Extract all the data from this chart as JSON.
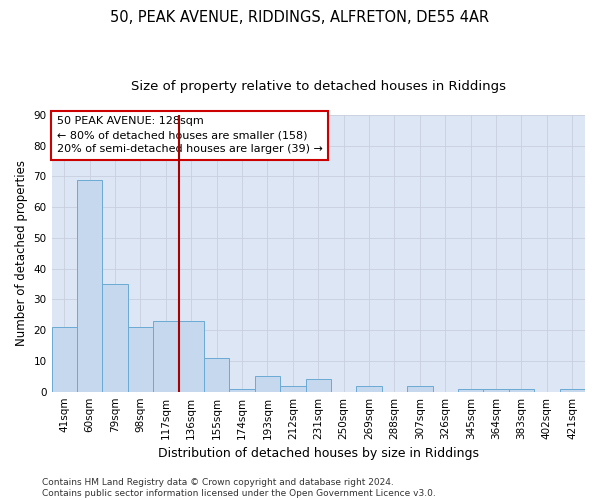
{
  "title1": "50, PEAK AVENUE, RIDDINGS, ALFRETON, DE55 4AR",
  "title2": "Size of property relative to detached houses in Riddings",
  "xlabel": "Distribution of detached houses by size in Riddings",
  "ylabel": "Number of detached properties",
  "categories": [
    "41sqm",
    "60sqm",
    "79sqm",
    "98sqm",
    "117sqm",
    "136sqm",
    "155sqm",
    "174sqm",
    "193sqm",
    "212sqm",
    "231sqm",
    "250sqm",
    "269sqm",
    "288sqm",
    "307sqm",
    "326sqm",
    "345sqm",
    "364sqm",
    "383sqm",
    "402sqm",
    "421sqm"
  ],
  "values": [
    21,
    69,
    35,
    21,
    23,
    23,
    11,
    1,
    5,
    2,
    4,
    0,
    2,
    0,
    2,
    0,
    1,
    1,
    1,
    0,
    1
  ],
  "bar_color": "#c5d8ee",
  "bar_edge_color": "#6aaad4",
  "vline_color": "#aa0000",
  "annotation_text": "50 PEAK AVENUE: 128sqm\n← 80% of detached houses are smaller (158)\n20% of semi-detached houses are larger (39) →",
  "annotation_box_color": "#cc0000",
  "ylim": [
    0,
    90
  ],
  "yticks": [
    0,
    10,
    20,
    30,
    40,
    50,
    60,
    70,
    80,
    90
  ],
  "grid_color": "#c8d0e0",
  "bg_color": "#dce6f5",
  "footer": "Contains HM Land Registry data © Crown copyright and database right 2024.\nContains public sector information licensed under the Open Government Licence v3.0.",
  "title1_fontsize": 10.5,
  "title2_fontsize": 9.5,
  "xlabel_fontsize": 9,
  "ylabel_fontsize": 8.5,
  "tick_fontsize": 7.5,
  "annotation_fontsize": 8,
  "footer_fontsize": 6.5,
  "vline_x_index": 5
}
